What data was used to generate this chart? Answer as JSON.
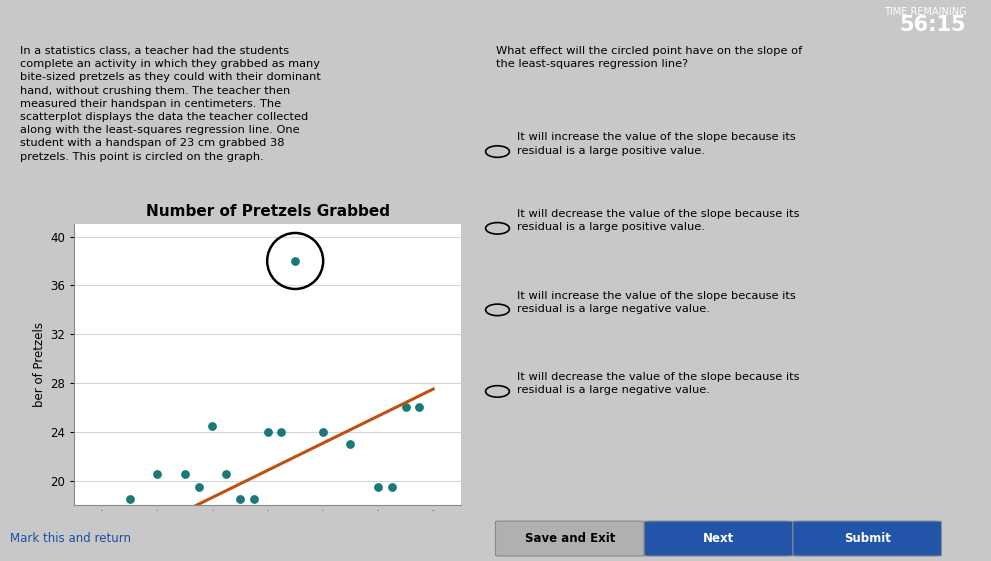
{
  "title": "Number of Pretzels Grabbed",
  "ylabel": "ber of Pretzels",
  "bg_color_top": "#2d3a5c",
  "bg_color_white": "#ffffff",
  "dot_color": "#1a7878",
  "line_color": "#c05010",
  "circled_point": [
    23,
    38
  ],
  "scatter_points": [
    [
      17,
      18.5
    ],
    [
      18,
      20.5
    ],
    [
      19,
      20.5
    ],
    [
      19.5,
      19.5
    ],
    [
      20,
      24.5
    ],
    [
      20.5,
      20.5
    ],
    [
      21,
      18.5
    ],
    [
      21.5,
      18.5
    ],
    [
      22,
      24
    ],
    [
      22.5,
      24
    ],
    [
      23,
      38
    ],
    [
      24,
      24
    ],
    [
      25,
      23
    ],
    [
      26,
      19.5
    ],
    [
      26.5,
      19.5
    ],
    [
      27,
      26
    ],
    [
      27.5,
      26
    ]
  ],
  "regression_line": [
    [
      19,
      17.5
    ],
    [
      28,
      27.5
    ]
  ],
  "ylim": [
    18,
    41
  ],
  "xlim": [
    15,
    29
  ],
  "yticks": [
    20,
    24,
    28,
    32,
    36,
    40
  ],
  "time_remaining_label": "TIME REMAINING",
  "time_remaining_value": "56:15",
  "left_text": "In a statistics class, a teacher had the students\ncomplete an activity in which they grabbed as many\nbite-sized pretzels as they could with their dominant\nhand, without crushing them. The teacher then\nmeasured their handspan in centimeters. The\nscatterplot displays the data the teacher collected\nalong with the least-squares regression line. One\nstudent with a handspan of 23 cm grabbed 38\npretzels. This point is circled on the graph.",
  "right_text_title": "What effect will the circled point have on the slope of\nthe least-squares regression line?",
  "right_options": [
    "It will increase the value of the slope because its\nresidual is a large positive value.",
    "It will decrease the value of the slope because its\nresidual is a large positive value.",
    "It will increase the value of the slope because its\nresidual is a large negative value.",
    "It will decrease the value of the slope because its\nresidual is a large negative value."
  ],
  "bottom_left": "Mark this and return",
  "bottom_buttons": [
    "Save and Exit",
    "Next",
    "Submit"
  ],
  "btn_colors": [
    "#b0b0b0",
    "#2255aa",
    "#2255aa"
  ],
  "btn_text_colors": [
    "black",
    "white",
    "white"
  ]
}
